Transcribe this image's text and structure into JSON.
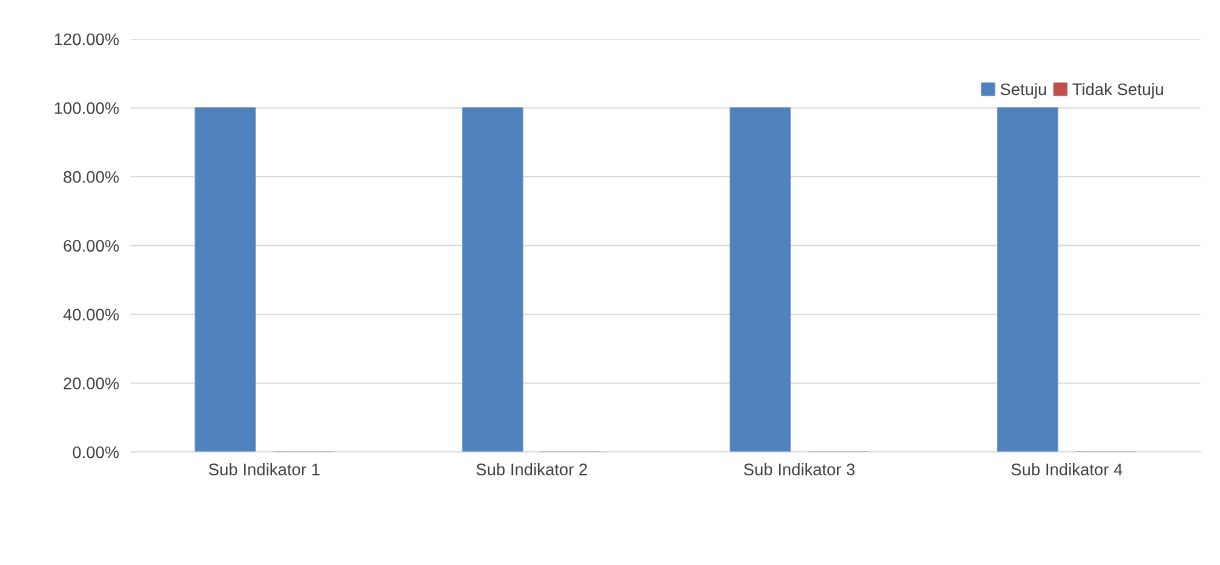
{
  "chart_data": {
    "type": "bar",
    "categories": [
      "Sub Indikator 1",
      "Sub Indikator 2",
      "Sub Indikator 3",
      "Sub Indikator 4"
    ],
    "series": [
      {
        "name": "Setuju",
        "color": "#4f81bd",
        "values": [
          100,
          100,
          100,
          100
        ]
      },
      {
        "name": "Tidak Setuju",
        "color": "#c0504d",
        "values": [
          0,
          0,
          0,
          0
        ]
      }
    ],
    "ylim": [
      0,
      120
    ],
    "yticks": [
      {
        "value": 0,
        "label": "0.00%"
      },
      {
        "value": 20,
        "label": "20.00%"
      },
      {
        "value": 40,
        "label": "40.00%"
      },
      {
        "value": 60,
        "label": "60.00%"
      },
      {
        "value": 80,
        "label": "80.00%"
      },
      {
        "value": 100,
        "label": "100.00%"
      },
      {
        "value": 120,
        "label": "120.00%"
      }
    ],
    "grid": "y",
    "legend": "top right"
  }
}
